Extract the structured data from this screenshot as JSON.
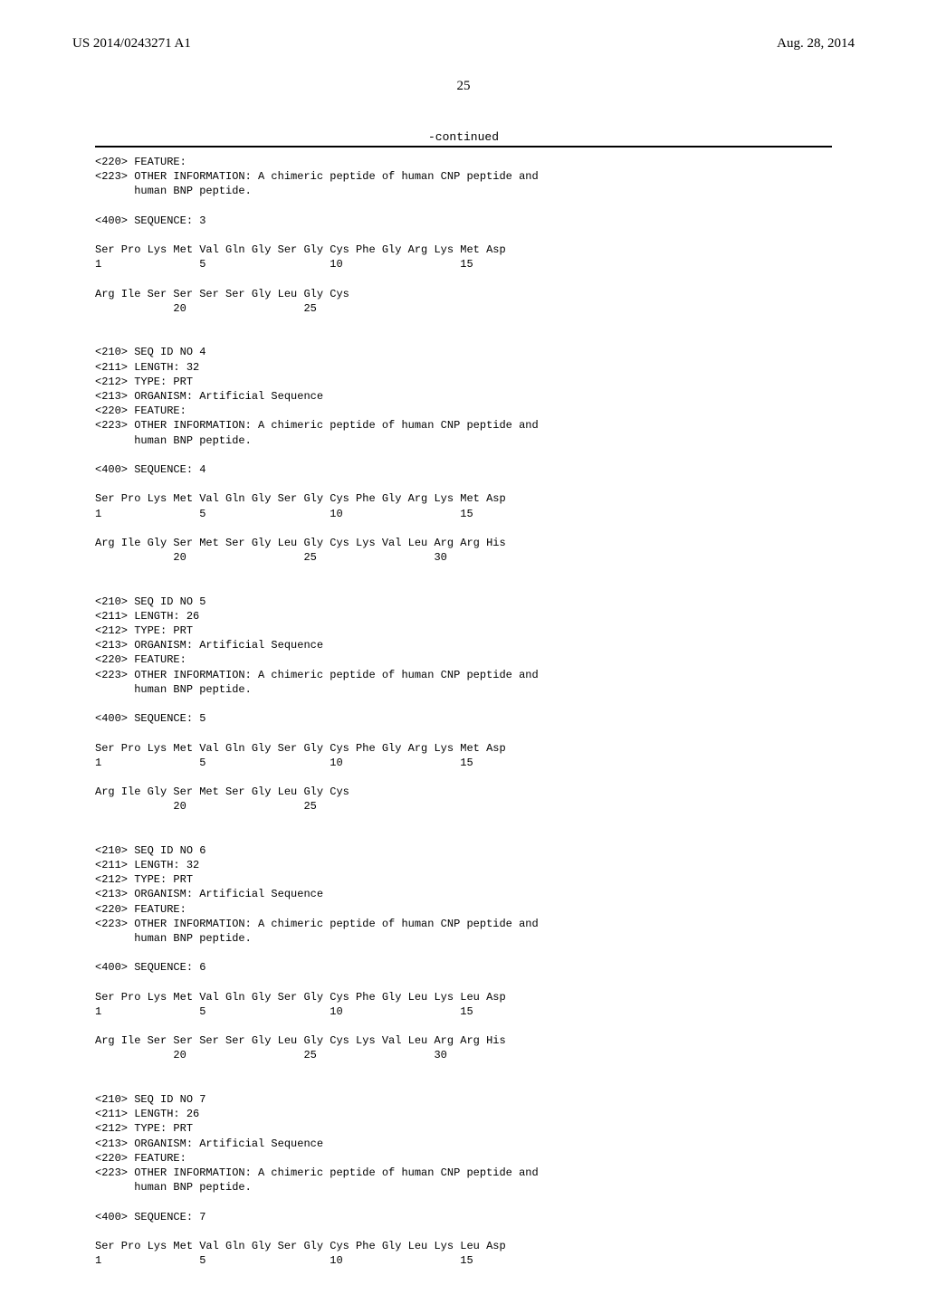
{
  "header": {
    "publication_number": "US 2014/0243271 A1",
    "publication_date": "Aug. 28, 2014"
  },
  "page_number": "25",
  "continued_label": "-continued",
  "sequence_listing": "<220> FEATURE:\n<223> OTHER INFORMATION: A chimeric peptide of human CNP peptide and\n      human BNP peptide.\n\n<400> SEQUENCE: 3\n\nSer Pro Lys Met Val Gln Gly Ser Gly Cys Phe Gly Arg Lys Met Asp\n1               5                   10                  15\n\nArg Ile Ser Ser Ser Ser Gly Leu Gly Cys\n            20                  25\n\n\n<210> SEQ ID NO 4\n<211> LENGTH: 32\n<212> TYPE: PRT\n<213> ORGANISM: Artificial Sequence\n<220> FEATURE:\n<223> OTHER INFORMATION: A chimeric peptide of human CNP peptide and\n      human BNP peptide.\n\n<400> SEQUENCE: 4\n\nSer Pro Lys Met Val Gln Gly Ser Gly Cys Phe Gly Arg Lys Met Asp\n1               5                   10                  15\n\nArg Ile Gly Ser Met Ser Gly Leu Gly Cys Lys Val Leu Arg Arg His\n            20                  25                  30\n\n\n<210> SEQ ID NO 5\n<211> LENGTH: 26\n<212> TYPE: PRT\n<213> ORGANISM: Artificial Sequence\n<220> FEATURE:\n<223> OTHER INFORMATION: A chimeric peptide of human CNP peptide and\n      human BNP peptide.\n\n<400> SEQUENCE: 5\n\nSer Pro Lys Met Val Gln Gly Ser Gly Cys Phe Gly Arg Lys Met Asp\n1               5                   10                  15\n\nArg Ile Gly Ser Met Ser Gly Leu Gly Cys\n            20                  25\n\n\n<210> SEQ ID NO 6\n<211> LENGTH: 32\n<212> TYPE: PRT\n<213> ORGANISM: Artificial Sequence\n<220> FEATURE:\n<223> OTHER INFORMATION: A chimeric peptide of human CNP peptide and\n      human BNP peptide.\n\n<400> SEQUENCE: 6\n\nSer Pro Lys Met Val Gln Gly Ser Gly Cys Phe Gly Leu Lys Leu Asp\n1               5                   10                  15\n\nArg Ile Ser Ser Ser Ser Gly Leu Gly Cys Lys Val Leu Arg Arg His\n            20                  25                  30\n\n\n<210> SEQ ID NO 7\n<211> LENGTH: 26\n<212> TYPE: PRT\n<213> ORGANISM: Artificial Sequence\n<220> FEATURE:\n<223> OTHER INFORMATION: A chimeric peptide of human CNP peptide and\n      human BNP peptide.\n\n<400> SEQUENCE: 7\n\nSer Pro Lys Met Val Gln Gly Ser Gly Cys Phe Gly Leu Lys Leu Asp\n1               5                   10                  15"
}
